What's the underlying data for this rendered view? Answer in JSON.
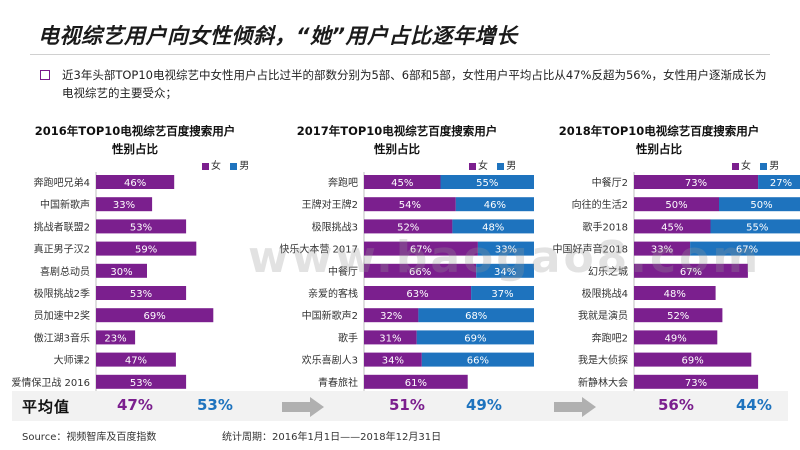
{
  "title": "电视综艺用户向女性倾斜，“她”用户占比逐年增长",
  "intro": "近3年头部TOP10电视综艺中女性用户占比过半的部数分别为5部、6部和5部，女性用户平均占比从47%反超为56%，女性用户逐渐成长为电视综艺的主要受众；",
  "legend": {
    "female": "女",
    "male": "男"
  },
  "colors": {
    "female": "#7b1f8e",
    "male": "#1e73be"
  },
  "avg_label": "平均值",
  "watermark": "www.baogao8.com",
  "source": "Source：视频智库及百度指数",
  "period": "统计周期：2016年1月1日——2018年12月31日",
  "chart_data": [
    {
      "type": "bar",
      "title_line1": "2016年TOP10电视综艺百度搜索用户",
      "title_line2": "性别占比",
      "categories": [
        "奔跑吧兄弟4",
        "中国新歌声",
        "挑战者联盟2",
        "真正男子汉2",
        "喜剧总动员",
        "极限挑战2季",
        "员加速中2奖",
        "傲江湖3音乐",
        "大师课2",
        "爱情保卫战 2016"
      ],
      "female": [
        46,
        33,
        53,
        59,
        30,
        53,
        69,
        23,
        47,
        53
      ],
      "male": [
        null,
        null,
        null,
        null,
        null,
        null,
        null,
        null,
        null,
        null
      ],
      "avg_female": "47%",
      "avg_male": "53%"
    },
    {
      "type": "bar",
      "title_line1": "2017年TOP10电视综艺百度搜索用户",
      "title_line2": "性别占比",
      "categories": [
        "奔跑吧",
        "王牌对王牌2",
        "极限挑战3",
        "快乐大本营 2017",
        "中餐厅",
        "亲爱的客栈",
        "中国新歌声2",
        "歌手",
        "欢乐喜剧人3",
        "青春旅社"
      ],
      "female": [
        45,
        54,
        52,
        67,
        66,
        63,
        32,
        31,
        34,
        61
      ],
      "male": [
        55,
        46,
        48,
        33,
        34,
        37,
        68,
        69,
        66,
        null
      ],
      "avg_female": "51%",
      "avg_male": "49%"
    },
    {
      "type": "bar",
      "title_line1": "2018年TOP10电视综艺百度搜索用户",
      "title_line2": "性别占比",
      "categories": [
        "中餐厅2",
        "向往的生活2",
        "歌手2018",
        "中国好声音2018",
        "幻乐之城",
        "极限挑战4",
        "我就是演员",
        "奔跑吧2",
        "我是大侦探",
        "新静林大会"
      ],
      "female": [
        73,
        50,
        45,
        33,
        67,
        48,
        52,
        49,
        69,
        73
      ],
      "male": [
        27,
        50,
        55,
        67,
        null,
        null,
        null,
        null,
        null,
        null
      ],
      "avg_female": "56%",
      "avg_male": "44%"
    }
  ]
}
